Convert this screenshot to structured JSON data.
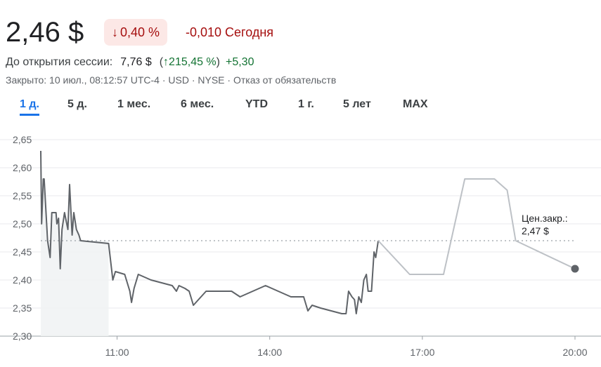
{
  "quote": {
    "price": "2,46 $",
    "change_percent": "0,40 %",
    "change_arrow": "↓",
    "change_abs": "-0,010 Сегодня"
  },
  "premarket": {
    "label": "До открытия сессии:",
    "price": "7,76 $",
    "open_paren": "(",
    "arrow": "↑",
    "percent": "215,45 %",
    "close_paren": ")",
    "abs": "+5,30"
  },
  "meta": {
    "text": "Закрыто: 10 июл., 08:12:57 UTC-4 · USD · NYSE · Отказ от обязательств"
  },
  "tabs": [
    {
      "label": "1 д.",
      "active": true
    },
    {
      "label": "5 д.",
      "active": false
    },
    {
      "label": "1 мес.",
      "active": false
    },
    {
      "label": "6 мес.",
      "active": false
    },
    {
      "label": "YTD",
      "active": false
    },
    {
      "label": "1 г.",
      "active": false
    },
    {
      "label": "5 лет",
      "active": false
    },
    {
      "label": "MAX",
      "active": false
    }
  ],
  "colors": {
    "down": "#a50e0e",
    "down_bg": "#fce8e6",
    "up": "#137333",
    "accent": "#1a73e8",
    "line": "#5f6368",
    "line_after_hours": "#bdc1c6"
  },
  "chart_data": {
    "type": "line",
    "ylim": [
      2.3,
      2.65
    ],
    "yticks": [
      "2,65",
      "2,60",
      "2,55",
      "2,50",
      "2,45",
      "2,40",
      "2,35",
      "2,30"
    ],
    "ytick_values": [
      2.65,
      2.6,
      2.55,
      2.5,
      2.45,
      2.4,
      2.35,
      2.3
    ],
    "xlim": [
      "09:30",
      "20:00"
    ],
    "xticks": [
      "11:00",
      "14:00",
      "17:00",
      "20:00"
    ],
    "xtick_values": [
      "11:00",
      "14:00",
      "17:00",
      "20:00"
    ],
    "grid": true,
    "prev_close": {
      "label_line1": "Цен.закр.:",
      "label_line2": "2,47 $",
      "value": 2.47
    },
    "series": [
      {
        "session": "regular",
        "points": [
          [
            "09:30",
            2.63
          ],
          [
            "09:31",
            2.5
          ],
          [
            "09:33",
            2.58
          ],
          [
            "09:34",
            2.58
          ],
          [
            "09:38",
            2.47
          ],
          [
            "09:41",
            2.44
          ],
          [
            "09:43",
            2.52
          ],
          [
            "09:48",
            2.52
          ],
          [
            "09:49",
            2.5
          ],
          [
            "09:51",
            2.51
          ],
          [
            "09:53",
            2.42
          ],
          [
            "09:55",
            2.49
          ],
          [
            "09:58",
            2.52
          ],
          [
            "10:02",
            2.49
          ],
          [
            "10:04",
            2.57
          ],
          [
            "10:07",
            2.48
          ],
          [
            "10:09",
            2.52
          ],
          [
            "10:12",
            2.49
          ],
          [
            "10:15",
            2.48
          ],
          [
            "10:17",
            2.47
          ],
          [
            "10:50",
            2.465
          ],
          [
            "10:55",
            2.4
          ],
          [
            "10:58",
            2.415
          ],
          [
            "11:09",
            2.41
          ],
          [
            "11:15",
            2.38
          ],
          [
            "11:17",
            2.36
          ],
          [
            "11:20",
            2.385
          ],
          [
            "11:25",
            2.41
          ],
          [
            "11:40",
            2.4
          ],
          [
            "12:05",
            2.39
          ],
          [
            "12:10",
            2.38
          ],
          [
            "12:13",
            2.39
          ],
          [
            "12:20",
            2.385
          ],
          [
            "12:25",
            2.38
          ],
          [
            "12:30",
            2.355
          ],
          [
            "12:45",
            2.38
          ],
          [
            "13:15",
            2.38
          ],
          [
            "13:25",
            2.37
          ],
          [
            "13:55",
            2.39
          ],
          [
            "14:10",
            2.38
          ],
          [
            "14:25",
            2.37
          ],
          [
            "14:40",
            2.37
          ],
          [
            "14:45",
            2.345
          ],
          [
            "14:50",
            2.355
          ],
          [
            "15:00",
            2.35
          ],
          [
            "15:25",
            2.34
          ],
          [
            "15:30",
            2.34
          ],
          [
            "15:33",
            2.38
          ],
          [
            "15:37",
            2.37
          ],
          [
            "15:40",
            2.365
          ],
          [
            "15:42",
            2.34
          ],
          [
            "15:45",
            2.37
          ],
          [
            "15:48",
            2.36
          ],
          [
            "15:51",
            2.4
          ],
          [
            "15:54",
            2.41
          ],
          [
            "15:56",
            2.38
          ],
          [
            "16:00",
            2.38
          ],
          [
            "16:03",
            2.45
          ],
          [
            "16:05",
            2.44
          ],
          [
            "16:08",
            2.47
          ]
        ]
      },
      {
        "session": "after_hours",
        "points": [
          [
            "16:08",
            2.47
          ],
          [
            "16:45",
            2.41
          ],
          [
            "17:25",
            2.41
          ],
          [
            "17:50",
            2.58
          ],
          [
            "18:25",
            2.58
          ],
          [
            "18:40",
            2.56
          ],
          [
            "18:50",
            2.47
          ],
          [
            "20:00",
            2.42
          ]
        ]
      }
    ],
    "last_point": [
      "20:00",
      2.42
    ]
  }
}
